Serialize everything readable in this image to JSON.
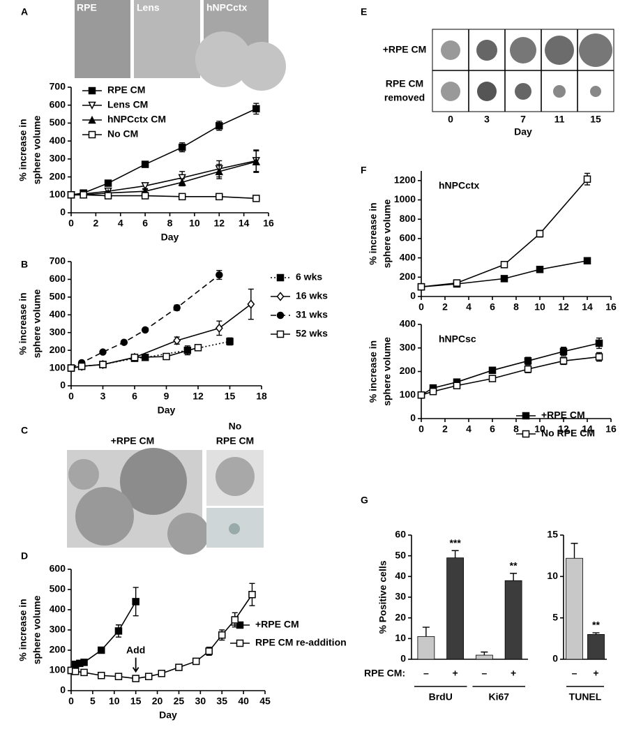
{
  "panels": [
    {
      "letter": "A",
      "images": [
        "RPE",
        "Lens",
        "hNPCctx"
      ]
    },
    {
      "letter": "B"
    },
    {
      "letter": "C",
      "labels": [
        "+RPE CM",
        "No",
        "RPE CM"
      ]
    },
    {
      "letter": "D"
    },
    {
      "letter": "E",
      "rows": [
        [
          "+RPE CM"
        ],
        [
          "RPE CM",
          "removed"
        ]
      ],
      "columns": [
        0,
        3,
        7,
        11,
        15
      ],
      "axis_label": "Day"
    },
    {
      "letter": "F"
    },
    {
      "letter": "G"
    }
  ],
  "chart_data": [
    {
      "type": "line",
      "ylabel": [
        "% increase in",
        "sphere volume"
      ],
      "xlabel": "Day",
      "xlim": [
        0,
        16
      ],
      "xticks": [
        0,
        2,
        4,
        6,
        8,
        10,
        12,
        14,
        16
      ],
      "ylim": [
        0,
        700
      ],
      "yticks": [
        0,
        100,
        200,
        300,
        400,
        500,
        600,
        700
      ],
      "x": [
        0,
        1,
        3,
        6,
        9,
        12,
        15
      ],
      "series": [
        {
          "name": "RPE CM",
          "color": "#000000",
          "marker": "square-filled",
          "linestyle": "solid",
          "values": [
            100,
            110,
            165,
            270,
            365,
            485,
            580
          ],
          "errors": [
            0,
            0,
            10,
            15,
            25,
            25,
            30
          ]
        },
        {
          "name": "Lens CM",
          "color": "#000000",
          "marker": "triangle-down-open",
          "linestyle": "solid",
          "values": [
            100,
            105,
            120,
            150,
            195,
            245,
            290
          ],
          "errors": [
            0,
            0,
            10,
            15,
            35,
            45,
            60
          ]
        },
        {
          "name": "hNPCctx CM",
          "color": "#000000",
          "marker": "triangle-filled",
          "linestyle": "solid",
          "values": [
            100,
            100,
            110,
            120,
            170,
            230,
            285
          ],
          "errors": [
            0,
            0,
            10,
            10,
            20,
            40,
            60
          ]
        },
        {
          "name": "No CM",
          "color": "#000000",
          "marker": "square-open",
          "linestyle": "solid",
          "values": [
            100,
            100,
            95,
            95,
            90,
            90,
            80
          ],
          "errors": [
            0,
            0,
            5,
            5,
            5,
            5,
            5
          ]
        }
      ]
    },
    {
      "type": "line",
      "ylabel": [
        "% increase in",
        "sphere volume"
      ],
      "xlabel": "Day",
      "xlim": [
        0,
        18
      ],
      "xticks": [
        0,
        3,
        6,
        9,
        12,
        15,
        18
      ],
      "ylim": [
        0,
        700
      ],
      "yticks": [
        0,
        100,
        200,
        300,
        400,
        500,
        600,
        700
      ],
      "series": [
        {
          "name": "6 wks",
          "color": "#000000",
          "marker": "square-filled",
          "linestyle": "dotted",
          "x": [
            0,
            1,
            3,
            6,
            7,
            11,
            15
          ],
          "values": [
            100,
            110,
            120,
            155,
            160,
            200,
            250
          ],
          "errors": [
            0,
            0,
            5,
            10,
            10,
            25,
            20
          ]
        },
        {
          "name": "16 wks",
          "color": "#000000",
          "marker": "diamond-open",
          "linestyle": "solid",
          "x": [
            0,
            1,
            3,
            6,
            10,
            14,
            17
          ],
          "values": [
            100,
            110,
            120,
            160,
            255,
            325,
            460
          ],
          "errors": [
            0,
            0,
            5,
            10,
            20,
            40,
            85
          ]
        },
        {
          "name": "31 wks",
          "color": "#000000",
          "marker": "circle-filled",
          "linestyle": "dashed",
          "x": [
            0,
            1,
            3,
            5,
            7,
            10,
            14
          ],
          "values": [
            100,
            130,
            190,
            245,
            315,
            440,
            625
          ],
          "errors": [
            0,
            5,
            5,
            5,
            5,
            15,
            25
          ]
        },
        {
          "name": "52 wks",
          "color": "#000000",
          "marker": "square-open",
          "linestyle": "solid",
          "x": [
            0,
            1,
            3,
            6,
            9,
            12
          ],
          "values": [
            100,
            110,
            120,
            160,
            165,
            215
          ],
          "errors": [
            0,
            0,
            5,
            10,
            10,
            10
          ]
        }
      ]
    },
    {
      "type": "line",
      "ylabel": [
        "% increase in",
        "sphere volume"
      ],
      "xlabel": "Day",
      "annotation": "Add",
      "xlim": [
        0,
        45
      ],
      "xticks": [
        0,
        5,
        10,
        15,
        20,
        25,
        30,
        35,
        40,
        45
      ],
      "ylim": [
        0,
        600
      ],
      "yticks": [
        0,
        100,
        200,
        300,
        400,
        500,
        600
      ],
      "series": [
        {
          "name": "+RPE CM",
          "color": "#000000",
          "marker": "square-filled",
          "linestyle": "solid",
          "x": [
            0,
            1,
            2,
            3,
            7,
            11,
            15
          ],
          "values": [
            100,
            130,
            135,
            140,
            200,
            295,
            440
          ],
          "errors": [
            0,
            5,
            5,
            5,
            10,
            30,
            70
          ]
        },
        {
          "name": "RPE CM re-addition",
          "color": "#000000",
          "marker": "square-open",
          "linestyle": "solid",
          "x": [
            0,
            1,
            3,
            7,
            11,
            15,
            18,
            21,
            25,
            29,
            32,
            35,
            38,
            42
          ],
          "values": [
            100,
            95,
            90,
            75,
            70,
            60,
            70,
            85,
            115,
            145,
            195,
            275,
            350,
            475
          ],
          "errors": [
            0,
            5,
            5,
            5,
            5,
            5,
            5,
            5,
            5,
            15,
            20,
            25,
            35,
            55
          ]
        }
      ]
    },
    {
      "type": "line",
      "label": "hNPCctx",
      "ylabel": [
        "% increase in",
        "sphere volume"
      ],
      "xlim": [
        0,
        16
      ],
      "xticks": [
        0,
        2,
        4,
        6,
        8,
        10,
        12,
        14,
        16
      ],
      "ylim": [
        0,
        1300
      ],
      "yticks": [
        0,
        200,
        400,
        600,
        800,
        1000,
        1200
      ],
      "x": [
        0,
        3,
        7,
        10,
        14
      ],
      "series": [
        {
          "name": "+RPE CM",
          "color": "#000000",
          "marker": "square-filled",
          "linestyle": "solid",
          "values": [
            100,
            130,
            185,
            280,
            370
          ],
          "errors": [
            0,
            5,
            5,
            10,
            20
          ]
        },
        {
          "name": "No RPE CM",
          "color": "#000000",
          "marker": "square-open",
          "linestyle": "solid",
          "values": [
            100,
            140,
            330,
            650,
            1215
          ],
          "errors": [
            0,
            10,
            10,
            35,
            60
          ]
        }
      ]
    },
    {
      "type": "line",
      "label": "hNPCsc",
      "ylabel": [
        "% increase in",
        "sphere volume"
      ],
      "xlim": [
        0,
        16
      ],
      "xticks": [
        0,
        2,
        4,
        6,
        8,
        10,
        12,
        14,
        16
      ],
      "ylim": [
        0,
        400
      ],
      "yticks": [
        0,
        100,
        200,
        300,
        400
      ],
      "x": [
        0,
        1,
        3,
        6,
        9,
        12,
        15
      ],
      "series": [
        {
          "name": "+RPE CM",
          "color": "#000000",
          "marker": "square-filled",
          "linestyle": "solid",
          "values": [
            100,
            130,
            155,
            205,
            245,
            285,
            320
          ],
          "errors": [
            0,
            10,
            10,
            12,
            15,
            18,
            22
          ]
        },
        {
          "name": "No RPE CM",
          "color": "#000000",
          "marker": "square-open",
          "linestyle": "solid",
          "values": [
            100,
            115,
            140,
            170,
            210,
            245,
            262
          ],
          "errors": [
            0,
            8,
            8,
            8,
            15,
            15,
            18
          ]
        }
      ]
    },
    {
      "type": "bar",
      "ylabel": [
        "% Positive cells"
      ],
      "row_label": "RPE CM:",
      "ylim": [
        0,
        60
      ],
      "yticks": [
        0,
        10,
        20,
        30,
        40,
        50,
        60
      ],
      "categories": [
        "–",
        "+",
        "–",
        "+"
      ],
      "groups": [
        "BrdU",
        "Ki67"
      ],
      "colors": [
        "#c8c8c8",
        "#3c3c3c",
        "#c8c8c8",
        "#3c3c3c"
      ],
      "values": [
        11,
        49,
        2,
        38
      ],
      "errors": [
        4.5,
        3.5,
        1.5,
        3.5
      ],
      "significance": [
        null,
        "***",
        null,
        "**"
      ]
    },
    {
      "type": "bar",
      "ylim": [
        0,
        15
      ],
      "yticks": [
        0,
        5,
        10,
        15
      ],
      "categories": [
        "–",
        "+"
      ],
      "groups": [
        "TUNEL"
      ],
      "colors": [
        "#c8c8c8",
        "#3c3c3c"
      ],
      "values": [
        12.2,
        3
      ],
      "errors": [
        1.8,
        0.2
      ],
      "significance": [
        null,
        "**"
      ]
    }
  ]
}
